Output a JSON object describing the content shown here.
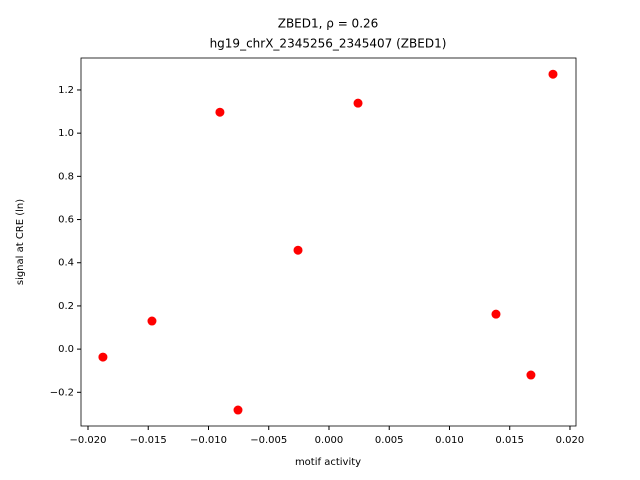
{
  "chart_data": {
    "type": "scatter",
    "title": "ZBED1, ρ = 0.26",
    "subtitle": "hg19_chrX_2345256_2345407 (ZBED1)",
    "xlabel": "motif activity",
    "ylabel": "signal at CRE (ln)",
    "color": "#ff0000",
    "x": [
      -0.01876,
      -0.01469,
      -0.00905,
      -0.00755,
      -0.00257,
      0.00241,
      0.01386,
      0.01676,
      0.01859
    ],
    "values": [
      -0.037,
      0.13,
      1.097,
      -0.282,
      0.458,
      1.139,
      0.162,
      -0.12,
      1.273
    ],
    "xlim": [
      -0.02058,
      0.0205
    ],
    "ylim": [
      -0.356,
      1.348
    ],
    "xticks": [
      {
        "value": -0.02,
        "label": "−0.020"
      },
      {
        "value": -0.015,
        "label": "−0.015"
      },
      {
        "value": -0.01,
        "label": "−0.010"
      },
      {
        "value": -0.005,
        "label": "−0.005"
      },
      {
        "value": 0,
        "label": "0.000"
      },
      {
        "value": 0.005,
        "label": "0.005"
      },
      {
        "value": 0.01,
        "label": "0.010"
      },
      {
        "value": 0.015,
        "label": "0.015"
      },
      {
        "value": 0.02,
        "label": "0.020"
      }
    ],
    "yticks": [
      {
        "value": -0.2,
        "label": "−0.2"
      },
      {
        "value": 0,
        "label": "0.0"
      },
      0.2,
      0.4,
      0.6,
      0.8,
      {
        "value": 1,
        "label": "1.0"
      },
      1.2
    ]
  }
}
